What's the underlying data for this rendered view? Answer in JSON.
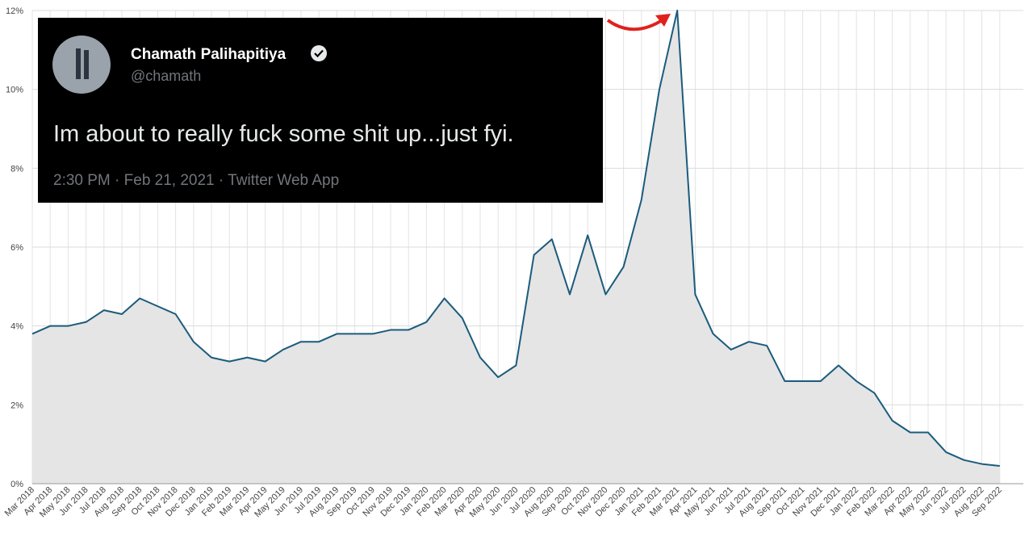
{
  "chart_data": {
    "type": "area",
    "categories": [
      "Mar 2018",
      "Apr 2018",
      "May 2018",
      "Jun 2018",
      "Jul 2018",
      "Aug 2018",
      "Sep 2018",
      "Oct 2018",
      "Nov 2018",
      "Dec 2018",
      "Jan 2019",
      "Feb 2019",
      "Mar 2019",
      "Apr 2019",
      "May 2019",
      "Jun 2019",
      "Jul 2019",
      "Aug 2019",
      "Sep 2019",
      "Oct 2019",
      "Nov 2019",
      "Dec 2019",
      "Jan 2020",
      "Feb 2020",
      "Mar 2020",
      "Apr 2020",
      "May 2020",
      "Jun 2020",
      "Jul 2020",
      "Aug 2020",
      "Sep 2020",
      "Oct 2020",
      "Nov 2020",
      "Dec 2020",
      "Jan 2021",
      "Feb 2021",
      "Mar 2021",
      "Apr 2021",
      "May 2021",
      "Jun 2021",
      "Jul 2021",
      "Aug 2021",
      "Sep 2021",
      "Oct 2021",
      "Nov 2021",
      "Dec 2021",
      "Jan 2022",
      "Feb 2022",
      "Mar 2022",
      "Apr 2022",
      "May 2022",
      "Jun 2022",
      "Jul 2022",
      "Aug 2022",
      "Sep 2022"
    ],
    "values": [
      3.8,
      4.0,
      4.0,
      4.1,
      4.4,
      4.3,
      4.7,
      4.5,
      4.3,
      3.6,
      3.2,
      3.1,
      3.2,
      3.1,
      3.4,
      3.6,
      3.6,
      3.8,
      3.8,
      3.8,
      3.9,
      3.9,
      4.1,
      4.7,
      4.2,
      3.2,
      2.7,
      3.0,
      5.8,
      6.2,
      4.8,
      6.3,
      4.8,
      5.5,
      7.2,
      10.0,
      12.0,
      4.8,
      3.8,
      3.4,
      3.6,
      3.5,
      2.6,
      2.6,
      2.6,
      3.0,
      2.6,
      2.3,
      1.6,
      1.3,
      1.3,
      0.8,
      0.6,
      0.5,
      0.45
    ],
    "color": "#1b5b7c",
    "fill": "#e5e5e5",
    "ylim": [
      0,
      12
    ],
    "yticks": [
      {
        "value": 0,
        "label": "0%"
      },
      {
        "value": 2,
        "label": "2%"
      },
      {
        "value": 4,
        "label": "4%"
      },
      {
        "value": 6,
        "label": "6%"
      },
      {
        "value": 8,
        "label": "8%"
      },
      {
        "value": 10,
        "label": "10%"
      },
      {
        "value": 12,
        "label": "12%"
      }
    ],
    "grid": true
  },
  "tweet": {
    "name": "Chamath Palihapitiya",
    "handle": "@chamath",
    "text": "Im about to really fuck some shit up...just fyi.",
    "timestamp": "2:30 PM · Feb 21, 2021 · Twitter Web App"
  }
}
